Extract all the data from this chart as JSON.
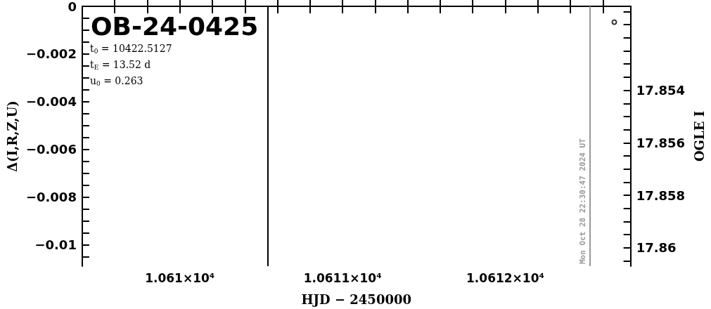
{
  "chart_data": {
    "type": "scatter",
    "title": "OB-24-0425",
    "xlabel": "HJD − 2450000",
    "ylabel": "Δ(I,R,Z,U)",
    "y2label": "OGLE I",
    "annotations": [
      "t$_{0}$ = 10422.5127",
      "t$_{E}$ = 13.52 d",
      "u$_{0}$ = 0.263",
      {
        "text": "Mon Oct 28 22:30:47 2024 UT",
        "x": 10612.52
      }
    ],
    "series": [
      {
        "axis": "y2",
        "color": "#000000",
        "x": [
          10612.67
        ],
        "values": [
          17.8514
        ]
      }
    ],
    "marker": "circle",
    "xlim": [
      10609.4,
      10612.77
    ],
    "xticks": [
      {
        "value": 10609.6,
        "label": null
      },
      {
        "value": 10609.8,
        "label": null
      },
      {
        "value": 10610,
        "label": "1.061×10⁴"
      },
      {
        "value": 10610.2,
        "label": null
      },
      {
        "value": 10610.4,
        "label": null
      },
      {
        "value": 10610.6,
        "label": null
      },
      {
        "value": 10610.8,
        "label": null
      },
      {
        "value": 10611,
        "label": "1.0611×10⁴"
      },
      {
        "value": 10611.2,
        "label": null
      },
      {
        "value": 10611.4,
        "label": null
      },
      {
        "value": 10611.6,
        "label": null
      },
      {
        "value": 10611.8,
        "label": null
      },
      {
        "value": 10612,
        "label": "1.0612×10⁴"
      },
      {
        "value": 10612.2,
        "label": null
      },
      {
        "value": 10612.4,
        "label": null
      },
      {
        "value": 10612.6,
        "label": null
      }
    ],
    "ylim": [
      -0.0109,
      0
    ],
    "yticks": [
      0,
      {
        "value": -0.0005,
        "label": null
      },
      {
        "value": -0.001,
        "label": null
      },
      {
        "value": -0.0015,
        "label": null
      },
      -0.002,
      {
        "value": -0.0025,
        "label": null
      },
      {
        "value": -0.003,
        "label": null
      },
      {
        "value": -0.0035,
        "label": null
      },
      -0.004,
      {
        "value": -0.0045,
        "label": null
      },
      {
        "value": -0.005,
        "label": null
      },
      {
        "value": -0.0055,
        "label": null
      },
      -0.006,
      {
        "value": -0.0065,
        "label": null
      },
      {
        "value": -0.007,
        "label": null
      },
      {
        "value": -0.0075,
        "label": null
      },
      -0.008,
      {
        "value": -0.0085,
        "label": null
      },
      {
        "value": -0.009,
        "label": null
      },
      {
        "value": -0.0095,
        "label": null
      },
      -0.01,
      {
        "value": -0.0105,
        "label": null
      }
    ],
    "y2lim": [
      17.8607,
      17.8508
    ],
    "y2ticks": [
      {
        "value": 17.851,
        "label": null
      },
      {
        "value": 17.8515,
        "label": null
      },
      {
        "value": 17.852,
        "label": null
      },
      {
        "value": 17.8525,
        "label": null
      },
      {
        "value": 17.853,
        "label": null
      },
      {
        "value": 17.8535,
        "label": null
      },
      17.854,
      {
        "value": 17.8545,
        "label": null
      },
      {
        "value": 17.855,
        "label": null
      },
      {
        "value": 17.8555,
        "label": null
      },
      17.856,
      {
        "value": 17.8565,
        "label": null
      },
      {
        "value": 17.857,
        "label": null
      },
      {
        "value": 17.8575,
        "label": null
      },
      17.858,
      {
        "value": 17.8585,
        "label": null
      },
      {
        "value": 17.859,
        "label": null
      },
      {
        "value": 17.8595,
        "label": null
      },
      17.86,
      {
        "value": 17.8605,
        "label": null
      }
    ],
    "ref_lines": [
      {
        "axis": "x",
        "value": 10610.54,
        "color": "#000000"
      },
      {
        "axis": "x",
        "value": 10612.52,
        "color": "#999999"
      }
    ],
    "grid": false
  }
}
